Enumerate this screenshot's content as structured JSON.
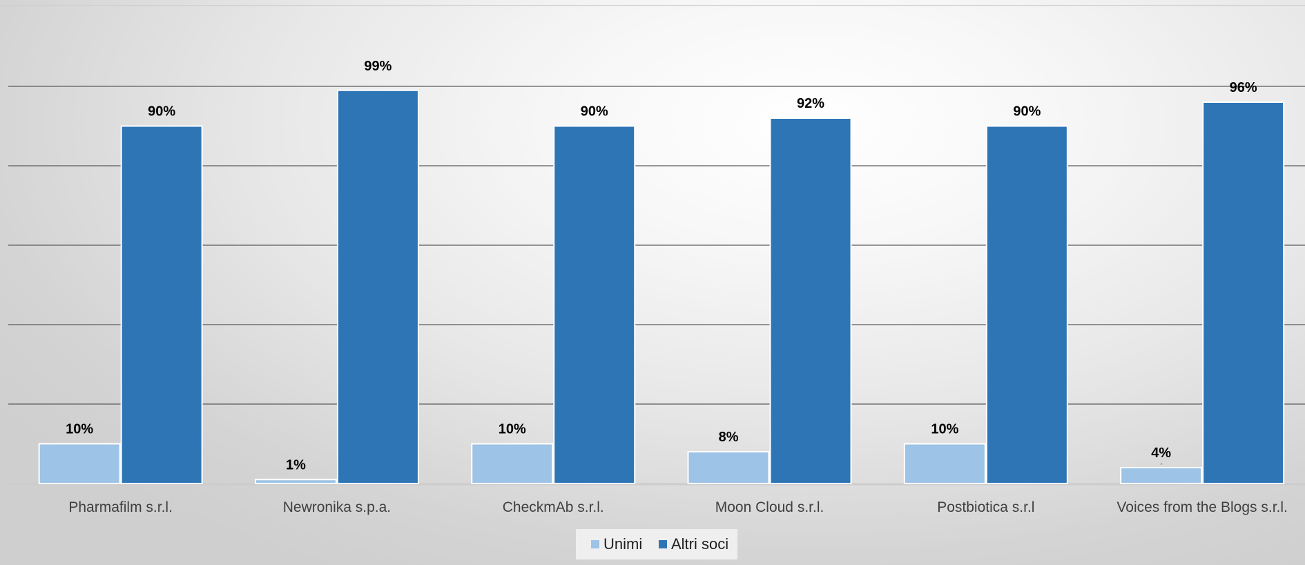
{
  "chart_data": {
    "type": "bar",
    "title": "",
    "xlabel": "",
    "ylabel": "",
    "ylim": [
      0,
      100
    ],
    "grid": true,
    "legend_position": "bottom",
    "categories": [
      "Pharmafilm s.r.l.",
      "Newronika s.p.a.",
      "CheckmAb s.r.l.",
      "Moon Cloud s.r.l.",
      "Postbiotica s.r.l",
      "Voices from the Blogs s.r.l."
    ],
    "series": [
      {
        "name": "Unimi",
        "color": "#9dc3e6",
        "values": [
          10,
          1,
          10,
          8,
          10,
          4
        ],
        "labels": [
          "10%",
          "1%",
          "10%",
          "8%",
          "10%",
          "4%"
        ]
      },
      {
        "name": "Altri soci",
        "color": "#2e75b6",
        "values": [
          90,
          99,
          90,
          92,
          90,
          96
        ],
        "labels": [
          "90%",
          "99%",
          "90%",
          "92%",
          "90%",
          "96%"
        ]
      }
    ]
  }
}
